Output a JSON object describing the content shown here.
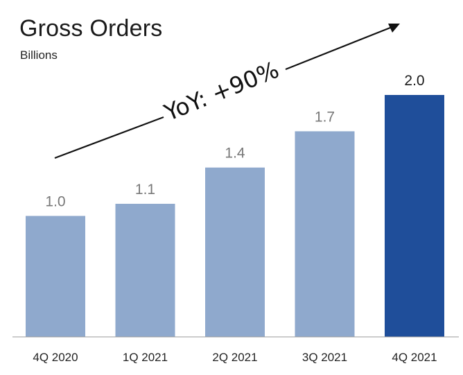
{
  "chart_data": {
    "type": "bar",
    "title": "Gross Orders",
    "subtitle": "Billions",
    "categories": [
      "4Q 2020",
      "1Q 2021",
      "2Q 2021",
      "3Q 2021",
      "4Q 2021"
    ],
    "values": [
      1.0,
      1.1,
      1.4,
      1.7,
      2.0
    ],
    "value_labels": [
      "1.0",
      "1.1",
      "1.4",
      "1.7",
      "2.0"
    ],
    "ylim": [
      0,
      2.0
    ],
    "grid": false,
    "annotation": "YoY: +90%",
    "colors": {
      "bar": "#8FA9CD",
      "highlight_bar": "#1F4E9A",
      "value_label": "#777777",
      "highlight_value_label": "#1a1a1a",
      "axis": "#9a9a9a",
      "arrow": "#111111"
    }
  }
}
